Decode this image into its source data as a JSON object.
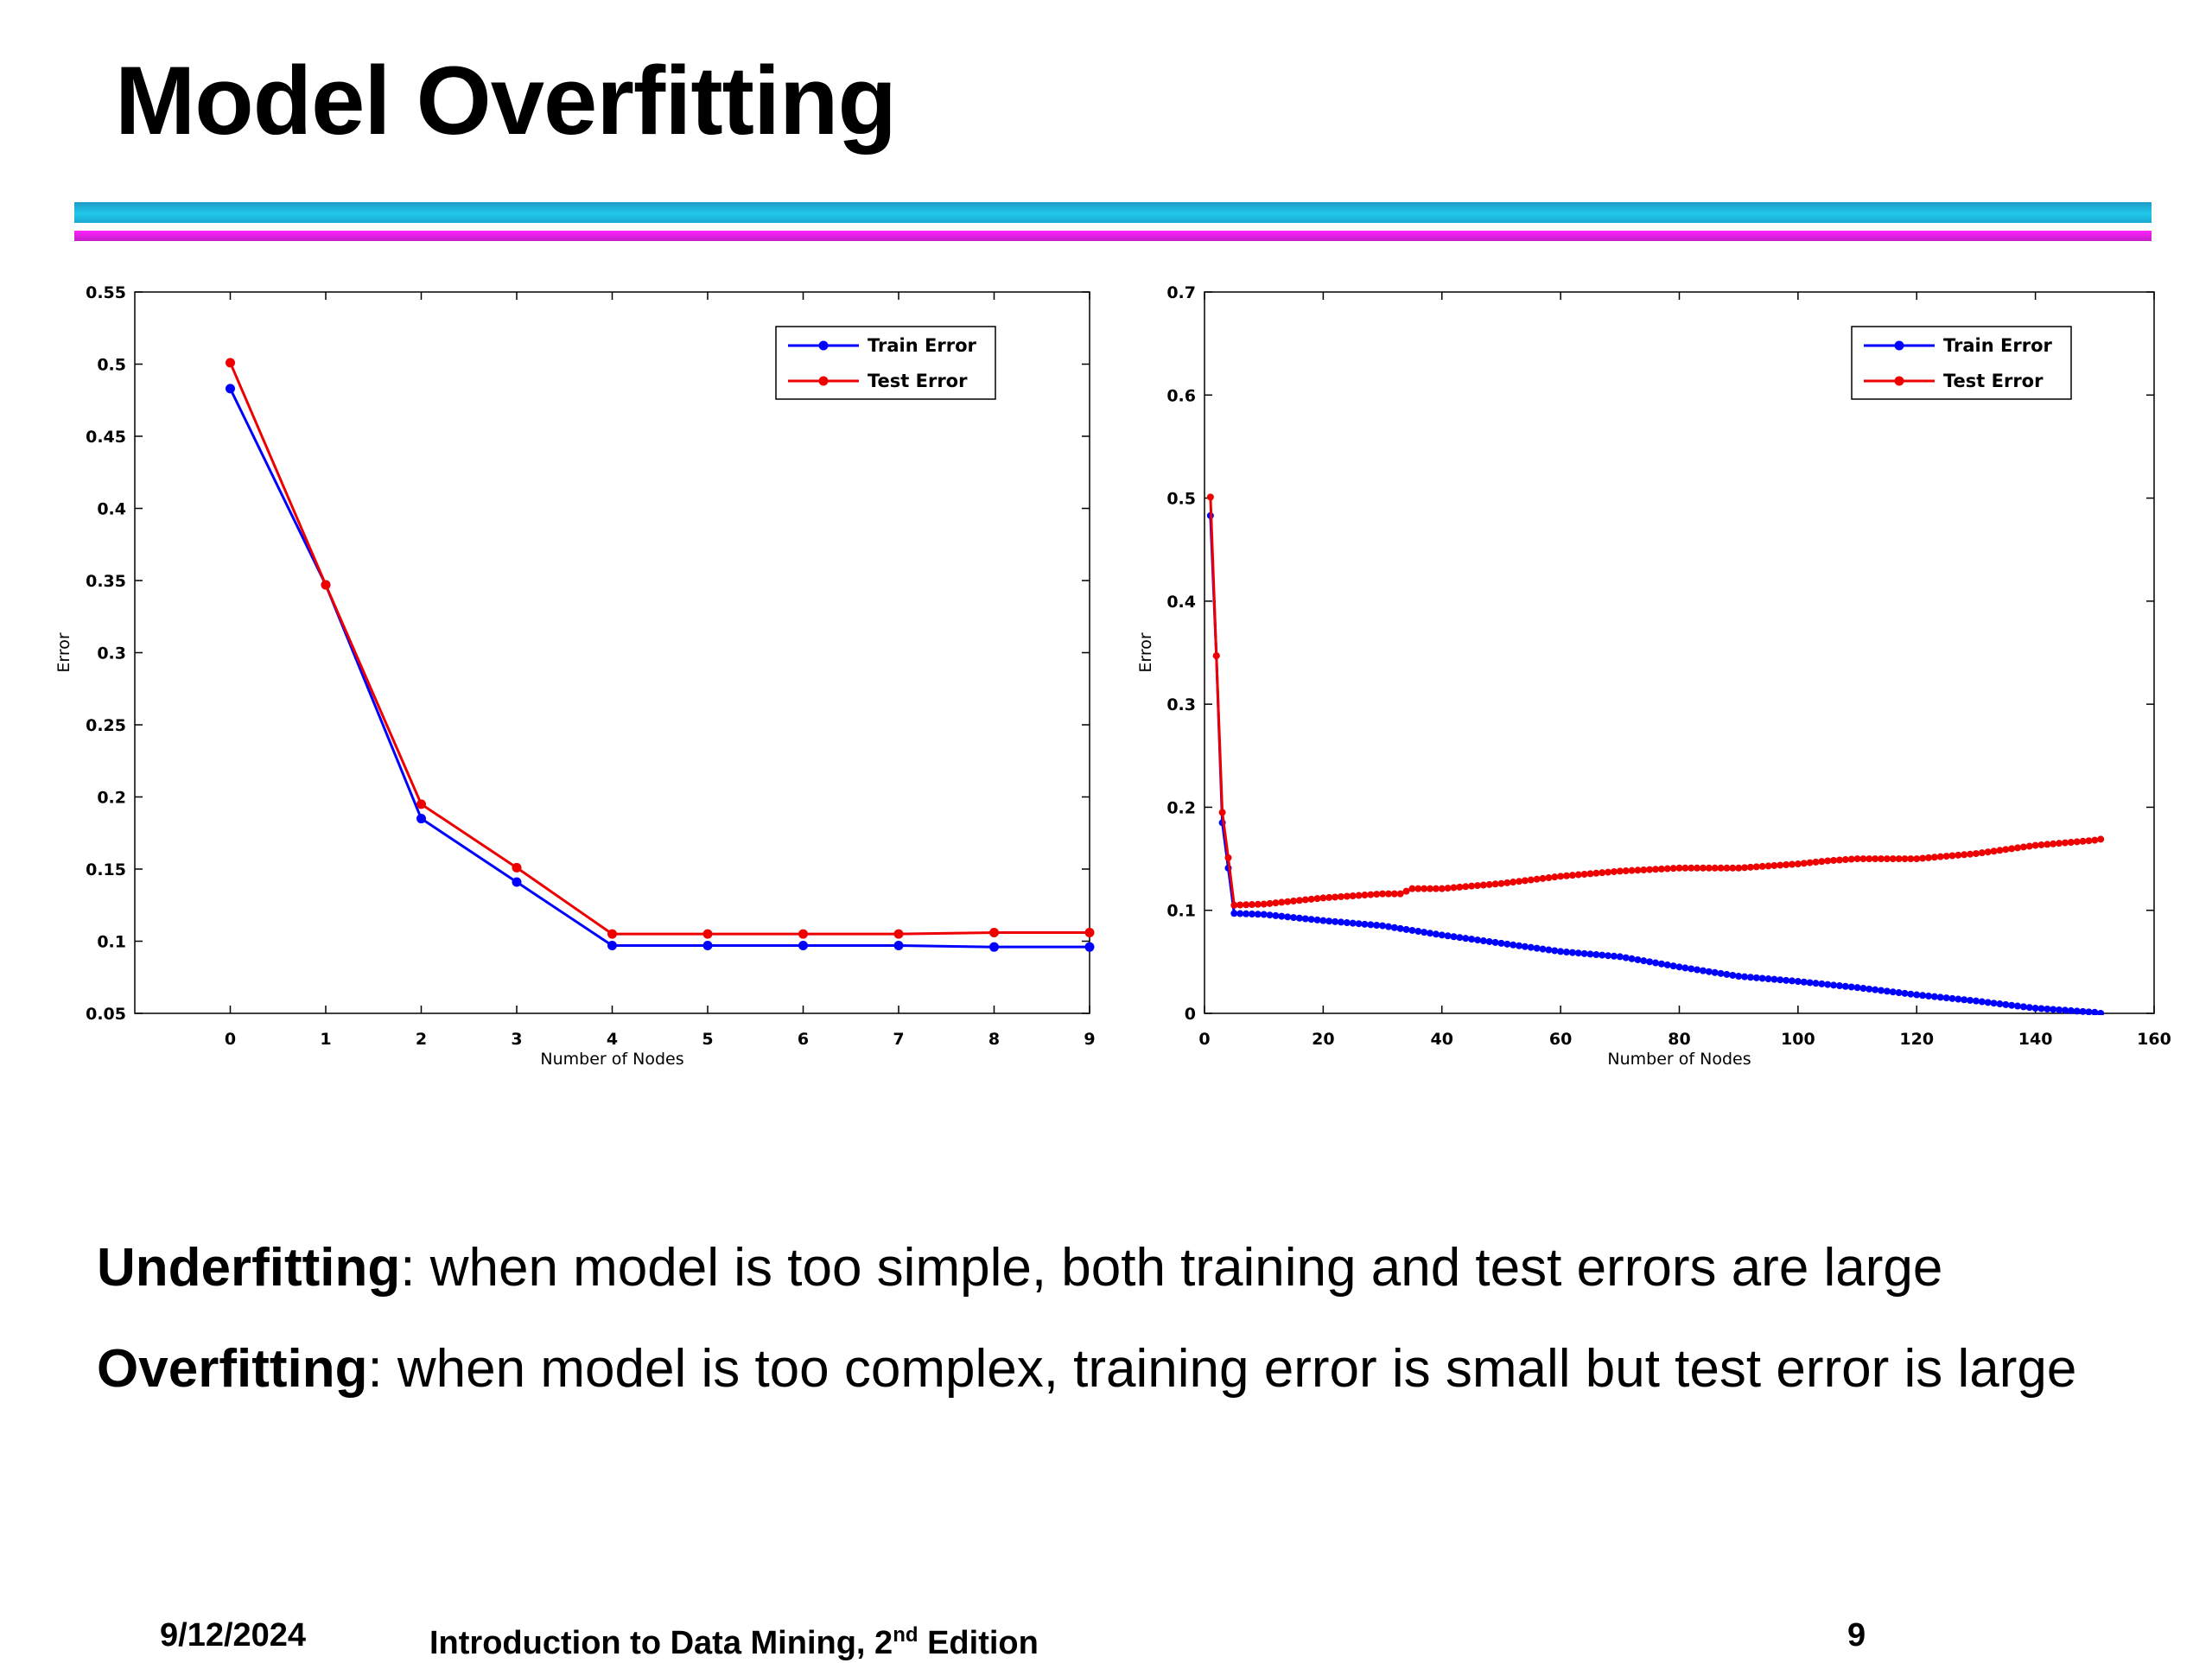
{
  "slide": {
    "title": "Model Overfitting",
    "underfitting_term": "Underfitting",
    "underfitting_text": ": when model is too simple, both training and test errors are large",
    "overfitting_term": "Overfitting",
    "overfitting_text": ": when model is too complex, training error is small but test error is large",
    "footer_date": "9/12/2024",
    "footer_book_main": "Introduction to Data Mining, 2",
    "footer_book_sup": "nd",
    "footer_book_end": " Edition",
    "footer_page": "9"
  },
  "colors": {
    "train": "#0000ff",
    "test": "#ee0000",
    "rule_cyan": "#21c7ea",
    "rule_magenta": "#d91fde"
  },
  "chart_data": [
    {
      "type": "line",
      "xlabel": "Number of Nodes",
      "ylabel": "Error",
      "xlim": [
        -1,
        9
      ],
      "ylim": [
        0.05,
        0.55
      ],
      "xticks": [
        0,
        1,
        2,
        3,
        4,
        5,
        6,
        7,
        8,
        9
      ],
      "yticks": [
        0.05,
        0.1,
        0.15,
        0.2,
        0.25,
        0.3,
        0.35,
        0.4,
        0.45,
        0.5,
        0.55
      ],
      "xtick_labels": [
        "0",
        "1",
        "2",
        "3",
        "4",
        "5",
        "6",
        "7",
        "8",
        "9"
      ],
      "ytick_labels": [
        "0.05",
        "0.1",
        "0.15",
        "0.2",
        "0.25",
        "0.3",
        "0.35",
        "0.4",
        "0.45",
        "0.5",
        "0.55"
      ],
      "legend_position": "top-right",
      "grid": false,
      "series": [
        {
          "name": "Train Error",
          "color": "#0000ff",
          "x": [
            0,
            1,
            2,
            3,
            4,
            5,
            6,
            7,
            8,
            9
          ],
          "y": [
            0.483,
            0.347,
            0.185,
            0.141,
            0.097,
            0.097,
            0.097,
            0.097,
            0.096,
            0.096
          ]
        },
        {
          "name": "Test Error",
          "color": "#ee0000",
          "x": [
            0,
            1,
            2,
            3,
            4,
            5,
            6,
            7,
            8,
            9
          ],
          "y": [
            0.501,
            0.347,
            0.195,
            0.151,
            0.105,
            0.105,
            0.105,
            0.105,
            0.106,
            0.106
          ]
        }
      ]
    },
    {
      "type": "line",
      "xlabel": "Number of Nodes",
      "ylabel": "Error",
      "xlim": [
        0,
        160
      ],
      "ylim": [
        0,
        0.7
      ],
      "xticks": [
        0,
        20,
        40,
        60,
        80,
        100,
        120,
        140,
        160
      ],
      "yticks": [
        0,
        0.1,
        0.2,
        0.3,
        0.4,
        0.5,
        0.6,
        0.7
      ],
      "xtick_labels": [
        "0",
        "20",
        "40",
        "60",
        "80",
        "100",
        "120",
        "140",
        "160"
      ],
      "ytick_labels": [
        "0",
        "0.1",
        "0.2",
        "0.3",
        "0.4",
        "0.5",
        "0.6",
        "0.7"
      ],
      "legend_position": "top-right",
      "grid": false,
      "series": [
        {
          "name": "Train Error",
          "color": "#0000ff",
          "x": [
            1,
            2,
            3,
            4,
            5,
            10,
            20,
            30,
            40,
            50,
            60,
            70,
            80,
            90,
            100,
            110,
            120,
            130,
            140,
            150,
            151
          ],
          "y": [
            0.483,
            0.347,
            0.185,
            0.141,
            0.097,
            0.096,
            0.09,
            0.085,
            0.076,
            0.068,
            0.06,
            0.055,
            0.045,
            0.036,
            0.031,
            0.025,
            0.018,
            0.012,
            0.005,
            0.001,
            0.0
          ]
        },
        {
          "name": "Test Error",
          "color": "#ee0000",
          "x": [
            1,
            2,
            3,
            4,
            5,
            10,
            20,
            30,
            33,
            35,
            40,
            50,
            60,
            70,
            80,
            90,
            100,
            105,
            110,
            120,
            130,
            140,
            150,
            151
          ],
          "y": [
            0.501,
            0.347,
            0.195,
            0.151,
            0.105,
            0.106,
            0.112,
            0.116,
            0.116,
            0.121,
            0.121,
            0.126,
            0.133,
            0.138,
            0.141,
            0.141,
            0.145,
            0.148,
            0.15,
            0.15,
            0.155,
            0.163,
            0.168,
            0.169
          ]
        }
      ]
    }
  ]
}
